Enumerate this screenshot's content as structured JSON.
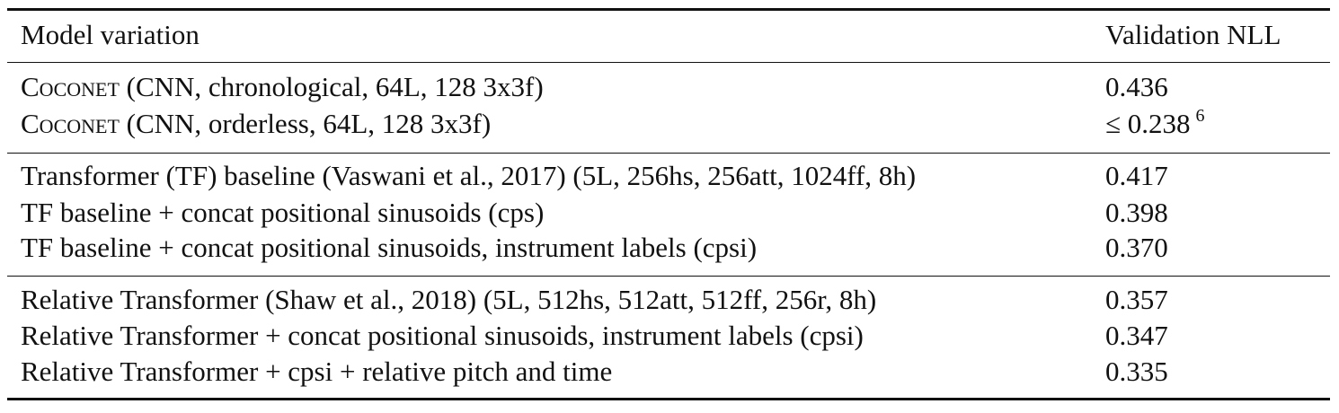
{
  "table": {
    "headers": {
      "model": "Model variation",
      "nll": "Validation NLL"
    },
    "groups": [
      {
        "rows": [
          {
            "model_sc": "Coconet",
            "model_rest": "(CNN, chronological, 64L, 128 3x3f)",
            "nll": "0.436",
            "nll_sup": ""
          },
          {
            "model_sc": "Coconet",
            "model_rest": "(CNN, orderless, 64L, 128 3x3f)",
            "nll": "≤ 0.238",
            "nll_sup": "6"
          }
        ]
      },
      {
        "rows": [
          {
            "model_sc": "",
            "model_rest": "Transformer (TF) baseline (Vaswani et al., 2017) (5L, 256hs, 256att, 1024ff, 8h)",
            "nll": "0.417",
            "nll_sup": ""
          },
          {
            "model_sc": "",
            "model_rest": "TF baseline + concat positional sinusoids (cps)",
            "nll": "0.398",
            "nll_sup": ""
          },
          {
            "model_sc": "",
            "model_rest": "TF baseline + concat positional sinusoids, instrument labels (cpsi)",
            "nll": "0.370",
            "nll_sup": ""
          }
        ]
      },
      {
        "rows": [
          {
            "model_sc": "",
            "model_rest": "Relative Transformer (Shaw et al., 2018) (5L, 512hs, 512att, 512ff, 256r, 8h)",
            "nll": "0.357",
            "nll_sup": ""
          },
          {
            "model_sc": "",
            "model_rest": "Relative Transformer + concat positional sinusoids, instrument labels (cpsi)",
            "nll": "0.347",
            "nll_sup": ""
          },
          {
            "model_sc": "",
            "model_rest": "Relative Transformer + cpsi + relative pitch and time",
            "nll": "0.335",
            "nll_sup": ""
          }
        ]
      }
    ]
  }
}
